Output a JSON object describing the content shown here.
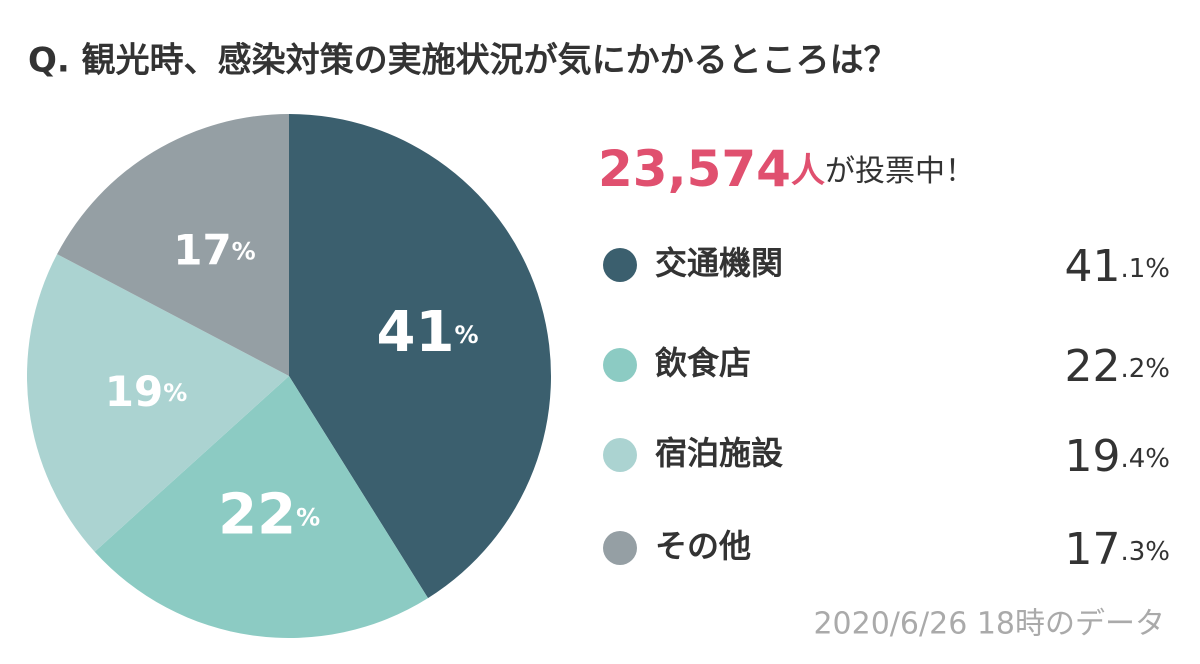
{
  "chart_data": {
    "type": "pie",
    "title": "Q. 観光時、感染対策の実施状況が気にかかるところは？",
    "vote_count": "23,574",
    "vote_unit": "人",
    "vote_suffix": "が投票中！",
    "categories": [
      "交通機関",
      "飲食店",
      "宿泊施設",
      "その他"
    ],
    "values": [
      41.1,
      22.2,
      19.4,
      17.3
    ],
    "value_labels": [
      "41.1%",
      "22.2%",
      "19.4%",
      "17.3%"
    ],
    "slice_labels": [
      "41%",
      "22%",
      "19%",
      "17%"
    ],
    "colors": [
      "#3b5f6e",
      "#8ccbc3",
      "#abd3d1",
      "#959fa4"
    ],
    "footnote": "2020/6/26 18時のデータ"
  }
}
